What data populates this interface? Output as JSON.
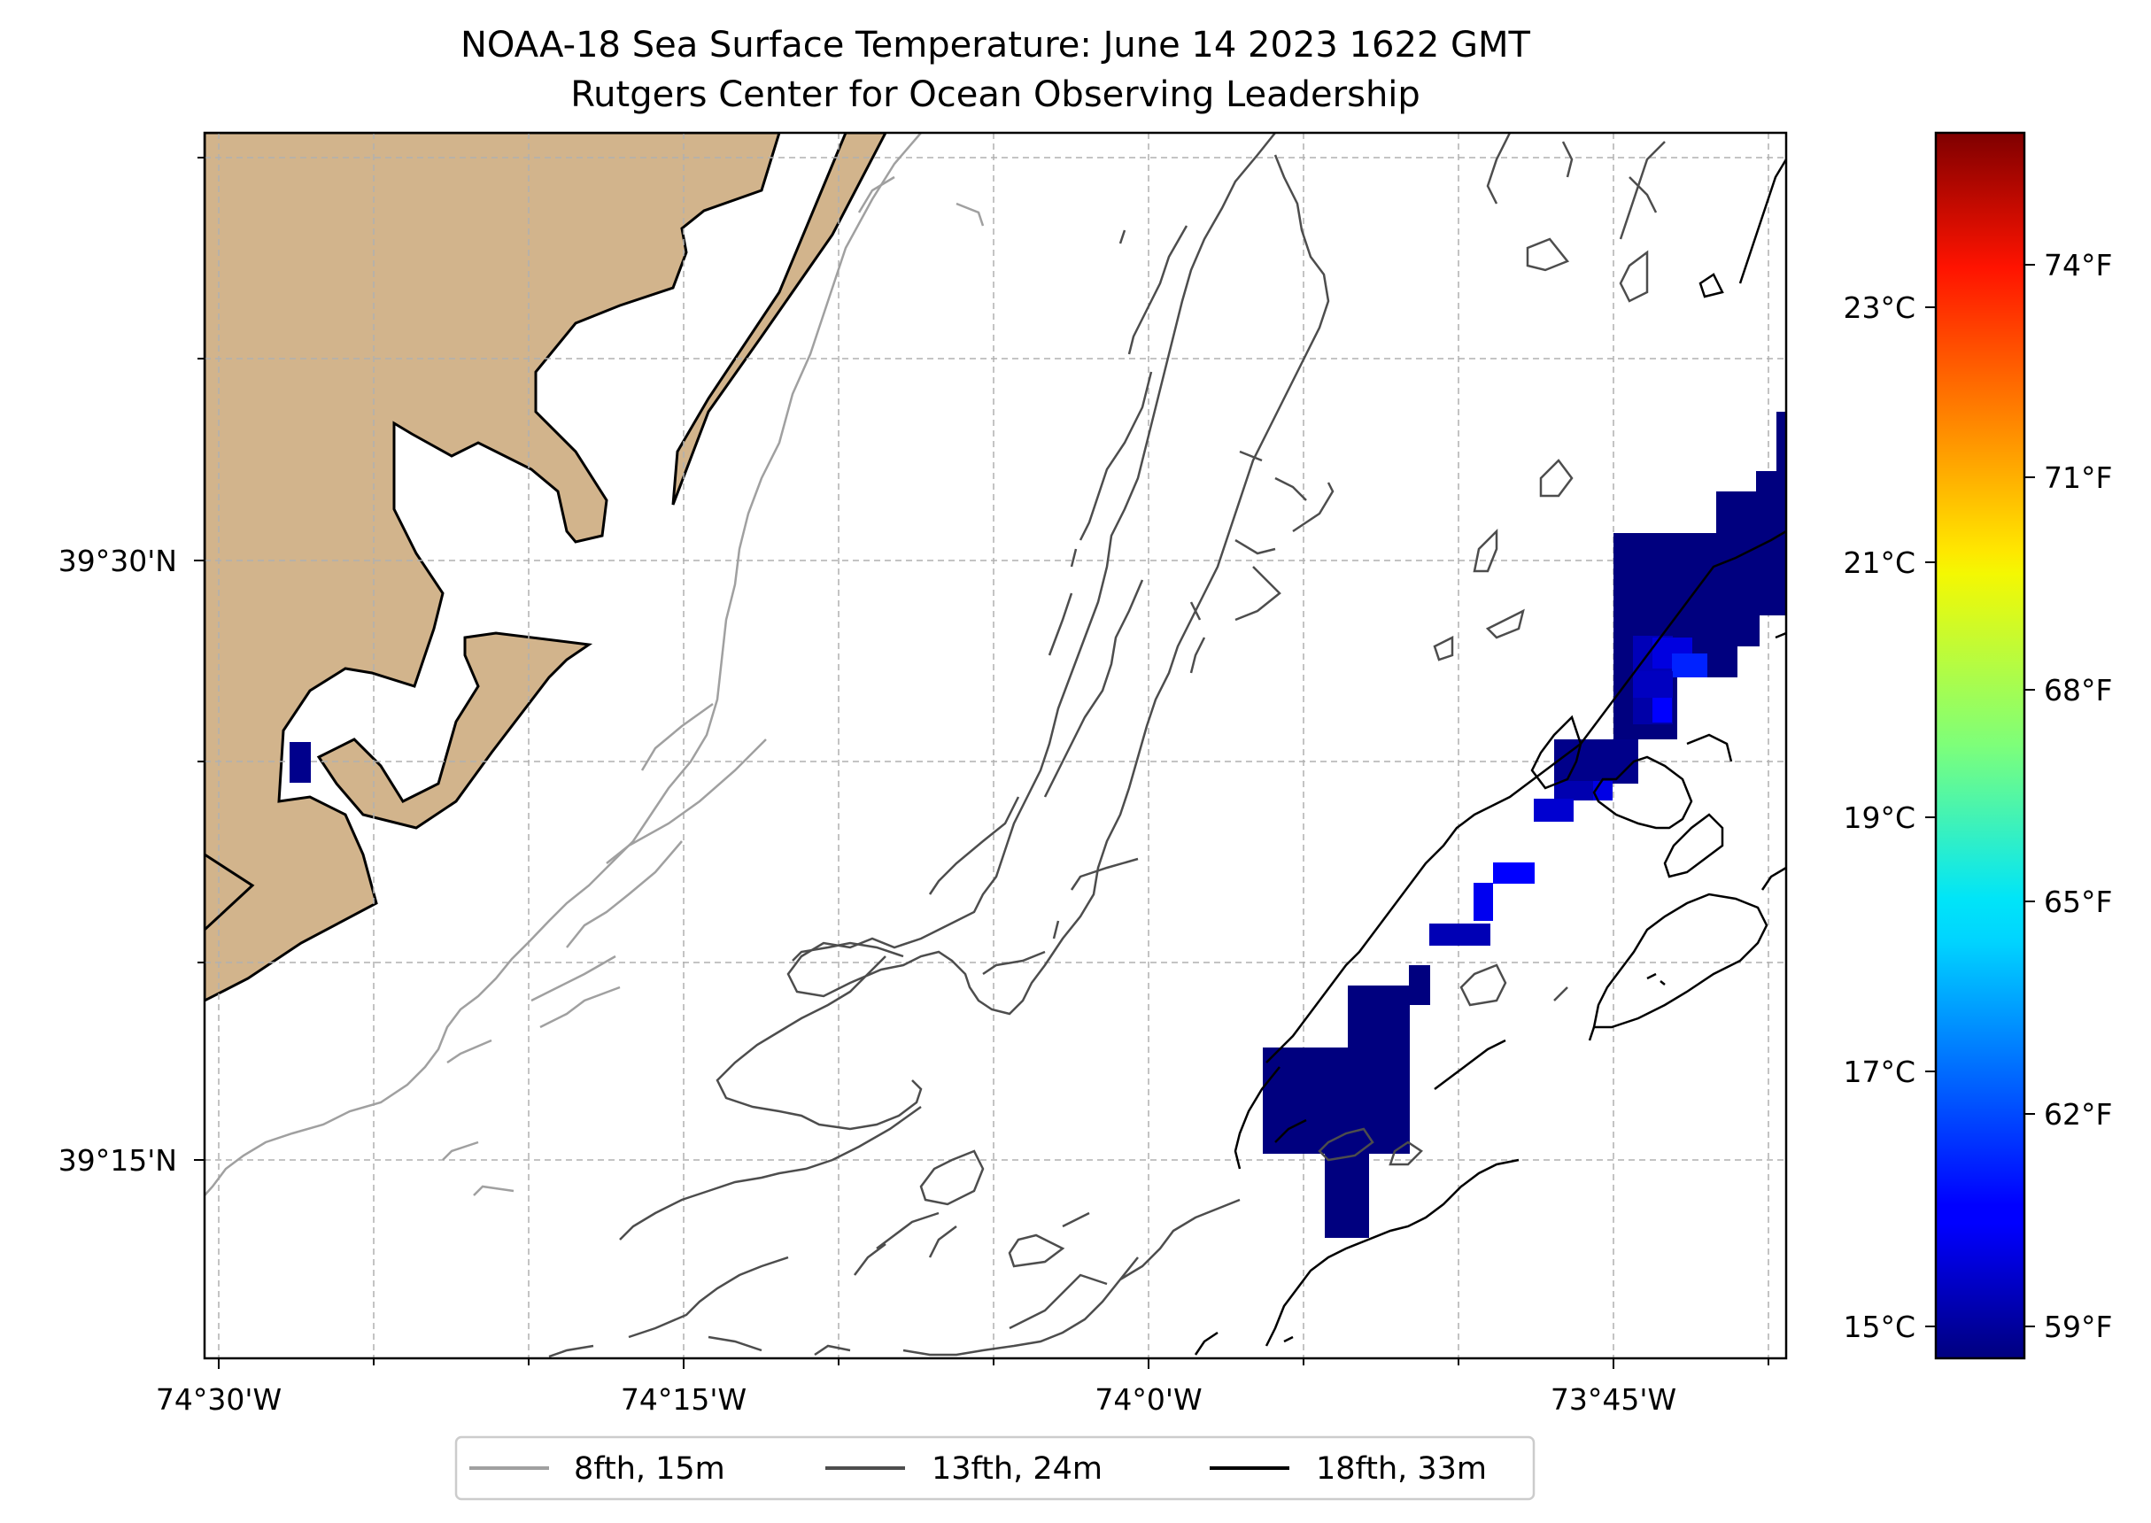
{
  "title": {
    "line1": "NOAA-18 Sea Surface Temperature: June 14 2023 1622 GMT",
    "line2": "Rutgers Center for Ocean Observing Leadership"
  },
  "map": {
    "x_ticks": [
      "74°30'W",
      "74°15'W",
      "74°0'W",
      "73°45'W"
    ],
    "y_ticks": [
      "39°30'N",
      "39°15'N"
    ],
    "land_color": "#d2b48c",
    "gridlines": "on"
  },
  "colorbar": {
    "celsius_ticks": [
      "15°C",
      "17°C",
      "19°C",
      "21°C",
      "23°C"
    ],
    "fahrenheit_ticks": [
      "59°F",
      "62°F",
      "65°F",
      "68°F",
      "71°F",
      "74°F"
    ],
    "colormap": "jet"
  },
  "legend": {
    "items": [
      {
        "label": "8fth, 15m",
        "color": "#a0a0a0"
      },
      {
        "label": "13fth, 24m",
        "color": "#4d4d4d"
      },
      {
        "label": "18fth, 33m",
        "color": "#000000"
      }
    ],
    "placement": "bottom-center"
  }
}
